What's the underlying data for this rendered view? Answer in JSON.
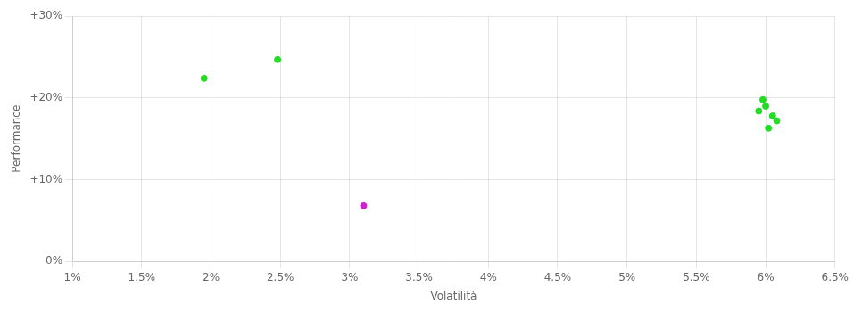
{
  "chart_data": {
    "type": "scatter",
    "xlabel": "Volatilità",
    "ylabel": "Performance",
    "xlim": [
      0.01,
      0.065
    ],
    "ylim": [
      0.0,
      0.3
    ],
    "xticks": [
      {
        "value": 0.01,
        "label": "1%"
      },
      {
        "value": 0.015,
        "label": "1.5%"
      },
      {
        "value": 0.02,
        "label": "2%"
      },
      {
        "value": 0.025,
        "label": "2.5%"
      },
      {
        "value": 0.03,
        "label": "3%"
      },
      {
        "value": 0.035,
        "label": "3.5%"
      },
      {
        "value": 0.04,
        "label": "4%"
      },
      {
        "value": 0.045,
        "label": "4.5%"
      },
      {
        "value": 0.05,
        "label": "5%"
      },
      {
        "value": 0.055,
        "label": "5.5%"
      },
      {
        "value": 0.06,
        "label": "6%"
      },
      {
        "value": 0.065,
        "label": "6.5%"
      }
    ],
    "yticks": [
      {
        "value": 0.0,
        "label": "0%"
      },
      {
        "value": 0.1,
        "label": "+10%"
      },
      {
        "value": 0.2,
        "label": "+20%"
      },
      {
        "value": 0.3,
        "label": "+30%"
      }
    ],
    "grid": true,
    "series": [
      {
        "color": "#22dd22",
        "x": [
          0.0195,
          0.0248,
          0.0598,
          0.06,
          0.0595,
          0.0605,
          0.0608,
          0.0602
        ],
        "values": [
          0.224,
          0.247,
          0.198,
          0.19,
          0.184,
          0.178,
          0.172,
          0.163
        ]
      },
      {
        "color": "#cc22cc",
        "x": [
          0.031
        ],
        "values": [
          0.068
        ]
      }
    ]
  }
}
